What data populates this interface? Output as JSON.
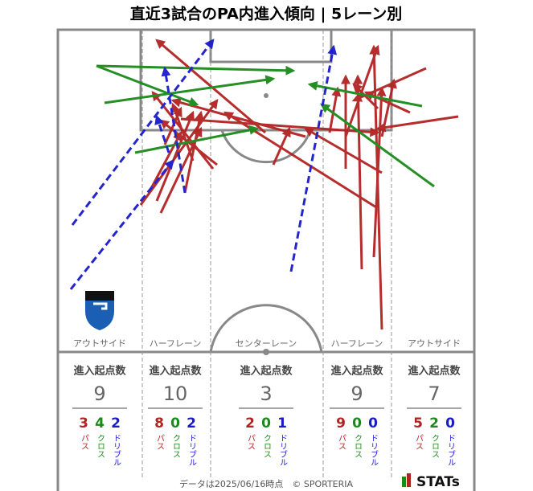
{
  "title": "直近3試合のPA内進入傾向 | 5レーン別",
  "header": "進入起点数",
  "legend": {
    "pass": "パス",
    "cross": "クロス",
    "dribble": "ドリブル"
  },
  "lanes": [
    {
      "name": "アウトサイド",
      "total": 9,
      "pass": 3,
      "cross": 4,
      "dribble": 2
    },
    {
      "name": "ハーフレーン",
      "total": 10,
      "pass": 8,
      "cross": 0,
      "dribble": 2
    },
    {
      "name": "センターレーン",
      "total": 3,
      "pass": 2,
      "cross": 0,
      "dribble": 1
    },
    {
      "name": "ハーフレーン",
      "total": 9,
      "pass": 9,
      "cross": 0,
      "dribble": 0
    },
    {
      "name": "アウトサイド",
      "total": 7,
      "pass": 5,
      "cross": 2,
      "dribble": 0
    }
  ],
  "footer": "データは2025/06/16時点　© SPORTERIA",
  "brand": "STATs"
}
